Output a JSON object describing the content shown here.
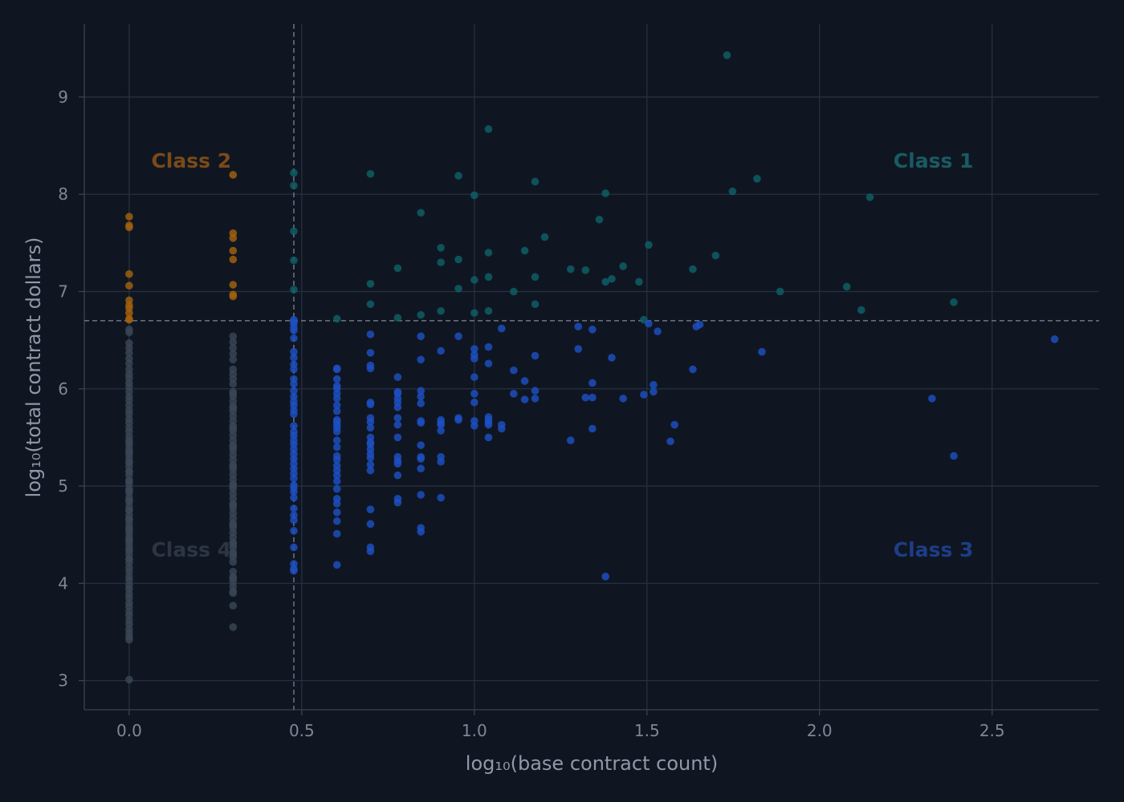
{
  "colors": {
    "background": "#0f1622",
    "grid": "#26303f",
    "axis": "#3a4352",
    "threshold": "#6e7683",
    "class1": "#0f5f66",
    "class2": "#a5600c",
    "class3": "#1d4fc2",
    "class4": "#3a4556",
    "class1_label": "#1a5b62",
    "class2_label": "#7a4a18",
    "class3_label": "#1e3d86",
    "class4_label": "#2c3543"
  },
  "chart_data": {
    "type": "scatter",
    "title": "",
    "xlabel": "log₁₀(base contract count)",
    "ylabel": "log₁₀(total contract dollars)",
    "xlim": [
      -0.13,
      2.81
    ],
    "ylim": [
      2.7,
      9.75
    ],
    "xticks": [
      0.0,
      0.5,
      1.0,
      1.5,
      2.0,
      2.5
    ],
    "xtick_labels": [
      "0.0",
      "0.5",
      "1.0",
      "1.5",
      "2.0",
      "2.5"
    ],
    "yticks": [
      3,
      4,
      5,
      6,
      7,
      8,
      9
    ],
    "ytick_labels": [
      "3",
      "4",
      "5",
      "6",
      "7",
      "8",
      "9"
    ],
    "grid": true,
    "legend": "none",
    "thresholds": {
      "x": 0.477,
      "y": 6.7
    },
    "class_labels": [
      {
        "text": "Class 1",
        "class": "class1",
        "x": 2.33,
        "y": 8.35
      },
      {
        "text": "Class 2",
        "class": "class2",
        "x": 0.18,
        "y": 8.35
      },
      {
        "text": "Class 3",
        "class": "class3",
        "x": 2.33,
        "y": 4.35
      },
      {
        "text": "Class 4",
        "class": "class4",
        "x": 0.18,
        "y": 4.35
      }
    ],
    "series": [
      {
        "class": "class1",
        "x": [
          1.732,
          1.041,
          0.699,
          0.954,
          1.176,
          0.477,
          0.477,
          0.845,
          1.38,
          1.748,
          1.819,
          2.146,
          1.0,
          1.204,
          0.903,
          1.505,
          1.362,
          0.477,
          0.903,
          1.146,
          0.954,
          1.041,
          1.699,
          0.778,
          1.279,
          1.322,
          1.431,
          1.633,
          1.176,
          1.0,
          1.398,
          1.38,
          0.477,
          0.699,
          1.041,
          1.477,
          0.954,
          1.114,
          0.477,
          1.886,
          2.079,
          0.699,
          1.176,
          2.389,
          2.121,
          0.903,
          1.041,
          1.0,
          0.845,
          0.778,
          0.602,
          1.491
        ],
        "y": [
          9.43,
          8.67,
          8.21,
          8.19,
          8.13,
          8.22,
          8.09,
          7.81,
          8.01,
          8.03,
          8.16,
          7.97,
          7.99,
          7.56,
          7.45,
          7.48,
          7.74,
          7.62,
          7.3,
          7.42,
          7.33,
          7.4,
          7.37,
          7.24,
          7.23,
          7.22,
          7.26,
          7.23,
          7.15,
          7.12,
          7.13,
          7.1,
          7.32,
          7.08,
          7.15,
          7.1,
          7.03,
          7.0,
          7.02,
          7.0,
          7.05,
          6.87,
          6.87,
          6.89,
          6.81,
          6.8,
          6.8,
          6.78,
          6.76,
          6.73,
          6.72,
          6.71
        ]
      },
      {
        "class": "class2",
        "x": [
          0,
          0,
          0,
          0,
          0,
          0,
          0,
          0,
          0,
          0,
          0,
          0.301,
          0.301,
          0.301,
          0.301,
          0.301,
          0.301,
          0.301,
          0.301
        ],
        "y": [
          7.77,
          7.68,
          7.66,
          7.18,
          7.06,
          6.91,
          6.86,
          6.83,
          6.78,
          6.72,
          6.71,
          8.2,
          7.6,
          7.55,
          7.42,
          7.33,
          7.07,
          6.97,
          6.95
        ]
      },
      {
        "class": "class3",
        "x": [
          0.477,
          0.477,
          0.477,
          0.477,
          0.477,
          0.477,
          0.477,
          0.477,
          0.477,
          0.477,
          0.477,
          0.477,
          0.477,
          0.477,
          0.477,
          0.477,
          0.477,
          0.477,
          0.477,
          0.477,
          0.477,
          0.477,
          0.477,
          0.477,
          0.477,
          0.477,
          0.477,
          0.477,
          0.477,
          0.477,
          0.477,
          0.477,
          0.477,
          0.477,
          0.477,
          0.477,
          0.477,
          0.477,
          0.477,
          0.477,
          0.477,
          0.477,
          0.602,
          0.602,
          0.602,
          0.602,
          0.602,
          0.602,
          0.602,
          0.602,
          0.602,
          0.602,
          0.602,
          0.602,
          0.602,
          0.602,
          0.602,
          0.602,
          0.602,
          0.602,
          0.602,
          0.602,
          0.602,
          0.602,
          0.602,
          0.602,
          0.602,
          0.602,
          0.602,
          0.602,
          0.602,
          0.699,
          0.699,
          0.699,
          0.699,
          0.699,
          0.699,
          0.699,
          0.699,
          0.699,
          0.699,
          0.699,
          0.699,
          0.699,
          0.699,
          0.699,
          0.699,
          0.699,
          0.699,
          0.699,
          0.699,
          0.699,
          0.778,
          0.778,
          0.778,
          0.778,
          0.778,
          0.778,
          0.778,
          0.778,
          0.778,
          0.778,
          0.778,
          0.778,
          0.778,
          0.778,
          0.778,
          0.845,
          0.845,
          0.845,
          0.845,
          0.845,
          0.845,
          0.845,
          0.845,
          0.845,
          0.845,
          0.845,
          0.845,
          0.845,
          0.845,
          0.903,
          0.903,
          0.903,
          0.903,
          0.903,
          0.903,
          0.903,
          0.903,
          0.954,
          0.954,
          0.954,
          1.0,
          1.0,
          1.0,
          1.0,
          1.0,
          1.0,
          1.0,
          1.0,
          1.041,
          1.041,
          1.041,
          1.041,
          1.041,
          1.041,
          1.041,
          1.079,
          1.079,
          1.079,
          1.114,
          1.114,
          1.146,
          1.146,
          1.176,
          1.176,
          1.176,
          1.279,
          1.301,
          1.301,
          1.322,
          1.342,
          1.342,
          1.342,
          1.342,
          1.38,
          1.398,
          1.431,
          1.491,
          1.505,
          1.519,
          1.519,
          1.531,
          1.568,
          1.58,
          1.633,
          1.643,
          1.653,
          1.833,
          2.326,
          2.389,
          2.681
        ],
        "y": [
          6.71,
          6.69,
          6.67,
          6.63,
          6.6,
          6.52,
          6.38,
          6.32,
          6.25,
          6.2,
          6.1,
          6.05,
          5.98,
          5.92,
          5.87,
          5.83,
          5.78,
          5.74,
          5.62,
          5.56,
          5.52,
          5.47,
          5.43,
          5.38,
          5.33,
          5.28,
          5.23,
          5.18,
          5.13,
          5.08,
          5.01,
          4.98,
          4.94,
          4.88,
          4.77,
          4.7,
          4.65,
          4.54,
          4.37,
          4.2,
          4.15,
          4.13,
          6.21,
          6.2,
          6.1,
          6.03,
          5.9,
          5.83,
          5.77,
          5.68,
          5.66,
          5.63,
          5.56,
          5.47,
          5.4,
          5.31,
          5.27,
          5.21,
          5.16,
          5.11,
          5.05,
          4.97,
          4.87,
          4.82,
          4.73,
          4.64,
          4.51,
          4.19,
          6.0,
          5.95,
          5.6,
          6.56,
          6.37,
          6.24,
          6.21,
          5.86,
          5.84,
          5.7,
          5.66,
          5.6,
          5.5,
          5.45,
          5.43,
          5.33,
          5.29,
          5.22,
          5.16,
          4.76,
          4.61,
          4.37,
          4.33,
          5.38,
          6.12,
          5.95,
          5.9,
          5.86,
          5.81,
          5.7,
          5.63,
          5.5,
          5.3,
          5.26,
          5.23,
          5.11,
          4.87,
          4.83,
          5.97,
          6.54,
          6.3,
          5.98,
          5.92,
          5.85,
          5.67,
          5.65,
          5.42,
          5.3,
          5.28,
          5.18,
          4.91,
          4.57,
          4.53,
          6.39,
          5.68,
          5.65,
          5.63,
          5.57,
          5.3,
          5.25,
          4.88,
          6.54,
          5.7,
          5.68,
          6.41,
          6.35,
          6.31,
          6.12,
          5.95,
          5.86,
          5.67,
          5.62,
          6.43,
          6.26,
          5.71,
          5.68,
          5.63,
          5.5,
          5.65,
          6.62,
          5.63,
          5.59,
          6.19,
          5.95,
          6.08,
          5.89,
          6.34,
          5.98,
          5.9,
          5.47,
          6.64,
          6.41,
          5.91,
          6.61,
          6.06,
          5.91,
          5.59,
          4.07,
          6.32,
          5.9,
          5.94,
          6.67,
          6.04,
          5.97,
          6.59,
          5.46,
          5.63,
          6.2,
          6.64,
          6.66,
          6.38,
          5.9,
          5.31,
          6.51
        ]
      },
      {
        "class": "class4",
        "x": [
          0,
          0,
          0,
          0,
          0,
          0,
          0,
          0,
          0,
          0,
          0,
          0,
          0,
          0,
          0,
          0,
          0,
          0,
          0,
          0,
          0,
          0,
          0,
          0,
          0,
          0,
          0,
          0,
          0,
          0,
          0,
          0,
          0,
          0,
          0,
          0,
          0,
          0,
          0,
          0,
          0,
          0,
          0,
          0,
          0,
          0,
          0,
          0,
          0,
          0,
          0,
          0,
          0,
          0,
          0,
          0,
          0,
          0,
          0,
          0,
          0,
          0,
          0,
          0,
          0,
          0,
          0,
          0,
          0,
          0,
          0,
          0,
          0,
          0,
          0,
          0,
          0,
          0,
          0,
          0,
          0,
          0,
          0,
          0,
          0.301,
          0.301,
          0.301,
          0.301,
          0.301,
          0.301,
          0.301,
          0.301,
          0.301,
          0.301,
          0.301,
          0.301,
          0.301,
          0.301,
          0.301,
          0.301,
          0.301,
          0.301,
          0.301,
          0.301,
          0.301,
          0.301,
          0.301,
          0.301,
          0.301,
          0.301,
          0.301,
          0.301,
          0.301,
          0.301,
          0.301,
          0.301,
          0.301,
          0.301,
          0.301,
          0.301,
          0.301,
          0.301,
          0.301,
          0.301,
          0.301,
          0.301,
          0.301,
          0.301,
          0.301,
          0.301,
          0.301,
          0.301,
          0.301,
          0.301,
          0.301,
          0.301,
          0.301,
          0.301,
          0.301,
          0.301,
          0.301,
          0.301,
          0.301,
          0.301,
          0.301,
          0.301,
          0.301,
          0.301
        ],
        "y": [
          6.61,
          6.58,
          6.47,
          6.42,
          6.37,
          6.31,
          6.26,
          6.2,
          6.15,
          6.11,
          6.06,
          6.02,
          5.97,
          5.92,
          5.88,
          5.83,
          5.78,
          5.74,
          5.69,
          5.65,
          5.6,
          5.56,
          5.51,
          5.47,
          5.42,
          5.38,
          5.33,
          5.29,
          5.24,
          5.2,
          5.15,
          5.11,
          5.06,
          5.02,
          4.97,
          4.93,
          4.88,
          4.84,
          4.79,
          4.75,
          4.7,
          4.66,
          4.61,
          4.57,
          4.52,
          4.48,
          4.43,
          4.39,
          4.34,
          4.3,
          4.25,
          4.21,
          4.16,
          4.12,
          4.07,
          4.03,
          3.98,
          3.94,
          3.89,
          3.85,
          3.8,
          3.76,
          3.71,
          3.67,
          3.62,
          3.58,
          3.53,
          3.49,
          3.45,
          3.42,
          5.45,
          5.35,
          5.25,
          5.15,
          5.05,
          4.95,
          4.85,
          4.75,
          4.65,
          4.55,
          4.45,
          4.35,
          4.25,
          3.01,
          6.54,
          6.48,
          6.42,
          6.36,
          6.3,
          6.2,
          6.15,
          6.1,
          6.05,
          5.97,
          5.92,
          5.87,
          5.82,
          5.77,
          5.72,
          5.67,
          5.62,
          5.57,
          5.52,
          5.47,
          5.42,
          5.37,
          5.32,
          5.27,
          5.22,
          5.17,
          5.12,
          5.07,
          5.02,
          4.97,
          4.92,
          4.87,
          4.82,
          4.77,
          4.72,
          4.67,
          4.62,
          4.57,
          4.52,
          4.47,
          4.42,
          4.37,
          4.32,
          4.27,
          4.22,
          4.12,
          4.07,
          4.02,
          3.97,
          3.92,
          3.9,
          3.77,
          3.55,
          5.95,
          5.8,
          5.6,
          5.4,
          5.2,
          5.0,
          4.8,
          4.6,
          4.4,
          4.3,
          4.05
        ]
      }
    ]
  }
}
